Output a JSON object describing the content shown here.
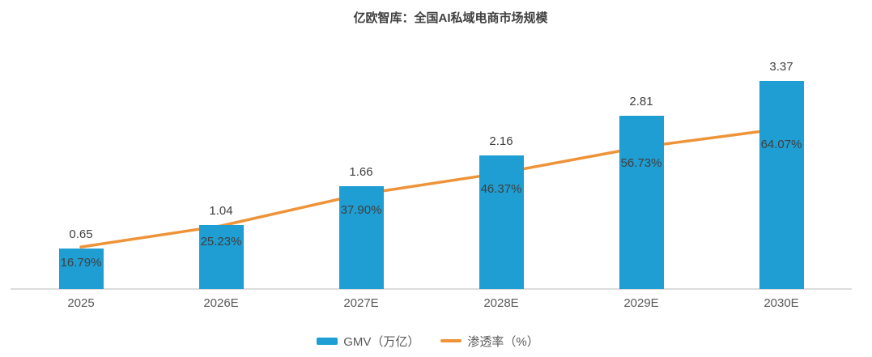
{
  "title": "亿欧智库：全国AI私域电商市场规模",
  "colors": {
    "bar": "#1E9ED3",
    "line": "#EE9338",
    "axis": "#DCDCDC",
    "title_text": "#404040",
    "value_label_text": "#404040",
    "pct_label_text": "#3F3F3F",
    "tick_text": "#595959"
  },
  "legend": {
    "items": [
      {
        "label": "GMV（万亿）",
        "swatch": "bar"
      },
      {
        "label": "渗透率（%）",
        "swatch": "line"
      }
    ]
  },
  "chart_data": {
    "type": "combo-bar-line",
    "title": "亿欧智库：全国AI私域电商市场规模",
    "categories": [
      "2025",
      "2026E",
      "2027E",
      "2028E",
      "2029E",
      "2030E"
    ],
    "series": [
      {
        "name": "GMV（万亿）",
        "type": "bar",
        "values": [
          0.65,
          1.04,
          1.66,
          2.16,
          2.81,
          3.37
        ],
        "labels": [
          "0.65",
          "1.04",
          "1.66",
          "2.16",
          "2.81",
          "3.37"
        ]
      },
      {
        "name": "渗透率（%）",
        "type": "line",
        "values": [
          16.79,
          25.23,
          37.9,
          46.37,
          56.73,
          64.07
        ],
        "labels": [
          "16.79%",
          "25.23%",
          "37.90%",
          "46.37%",
          "56.73%",
          "64.07%"
        ]
      }
    ],
    "xlabel": "",
    "ylabel": "",
    "bar_axis_range": [
      0,
      4.0
    ],
    "pct_axis_range": [
      0,
      100
    ],
    "grid": false,
    "legend_position": "bottom"
  }
}
